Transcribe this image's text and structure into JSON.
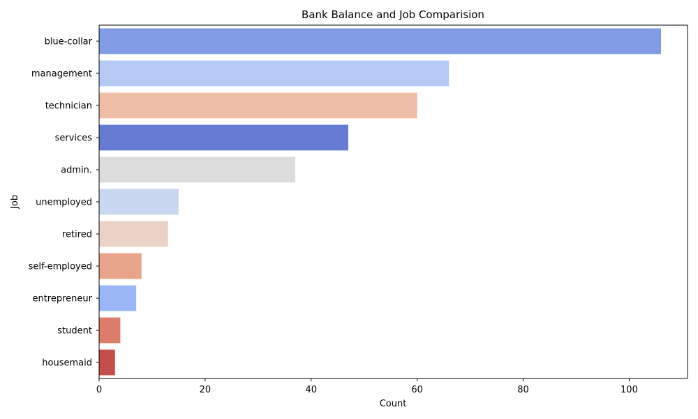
{
  "chart_data": {
    "type": "bar",
    "orientation": "horizontal",
    "title": "Bank Balance and Job Comparision",
    "xlabel": "Count",
    "ylabel": "Job",
    "xlim": [
      0,
      111
    ],
    "xticks": [
      0,
      20,
      40,
      60,
      80,
      100
    ],
    "grid": false,
    "legend": "none",
    "categories": [
      "blue-collar",
      "management",
      "technician",
      "services",
      "admin.",
      "unemployed",
      "retired",
      "self-employed",
      "entrepreneur",
      "student",
      "housemaid"
    ],
    "values": [
      106,
      66,
      60,
      47,
      37,
      15,
      13,
      8,
      7,
      4,
      3
    ],
    "colors": [
      "#819ce5",
      "#b5cbf5",
      "#eebfa6",
      "#667cd2",
      "#dcdcdc",
      "#cad7f1",
      "#ebd2c6",
      "#e9a48c",
      "#9bb6f4",
      "#dc7e6b",
      "#c44e4c"
    ]
  }
}
